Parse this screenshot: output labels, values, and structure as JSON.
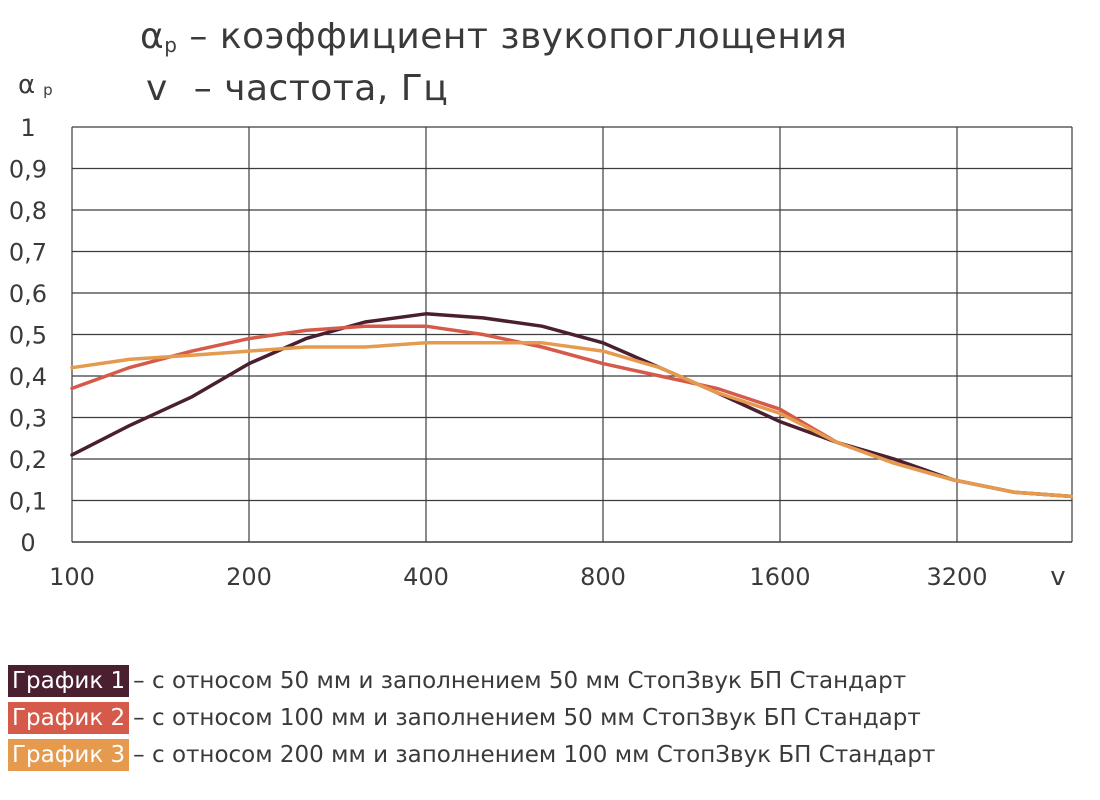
{
  "notes": {
    "alpha_symbol": "α",
    "alpha_sub": "p",
    "alpha_desc": "– коэффициент звукопоглощения",
    "nu_symbol": "v",
    "nu_desc": "– частота, Гц"
  },
  "chart_data": {
    "type": "line",
    "ylabel": "α",
    "ylabel_sub": "p",
    "xlabel": "v",
    "x_scale": "log2",
    "x": [
      100,
      125,
      160,
      200,
      250,
      315,
      400,
      500,
      630,
      800,
      1000,
      1250,
      1600,
      2000,
      2500,
      3150,
      4000,
      5000
    ],
    "x_ticks": [
      100,
      200,
      400,
      800,
      1600,
      3200
    ],
    "x_tick_labels": [
      "100",
      "200",
      "400",
      "800",
      "1600",
      "3200"
    ],
    "ylim": [
      0,
      1
    ],
    "y_ticks": [
      0,
      0.1,
      0.2,
      0.3,
      0.4,
      0.5,
      0.6,
      0.7,
      0.8,
      0.9,
      1
    ],
    "y_tick_labels": [
      "0",
      "0,1",
      "0,2",
      "0,3",
      "0,4",
      "0,5",
      "0,6",
      "0,7",
      "0,8",
      "0,9",
      "1"
    ],
    "grid": true,
    "series": [
      {
        "name": "График 1",
        "color": "#4a2030",
        "values": [
          0.21,
          0.28,
          0.35,
          0.43,
          0.49,
          0.53,
          0.55,
          0.54,
          0.52,
          0.48,
          0.42,
          0.36,
          0.29,
          0.24,
          0.2,
          0.15,
          0.12,
          0.11
        ]
      },
      {
        "name": "График 2",
        "color": "#d55a4a",
        "values": [
          0.37,
          0.42,
          0.46,
          0.49,
          0.51,
          0.52,
          0.52,
          0.5,
          0.47,
          0.43,
          0.4,
          0.37,
          0.32,
          0.24,
          0.19,
          0.15,
          0.12,
          0.11
        ]
      },
      {
        "name": "График 3",
        "color": "#e59a4e",
        "values": [
          0.42,
          0.44,
          0.45,
          0.46,
          0.47,
          0.47,
          0.48,
          0.48,
          0.48,
          0.46,
          0.42,
          0.36,
          0.31,
          0.24,
          0.19,
          0.15,
          0.12,
          0.11
        ]
      }
    ]
  },
  "legend": [
    {
      "label": "График 1",
      "desc": "– с относом 50 мм и заполнением 50 мм СтопЗвук БП Стандарт",
      "color": "#4a2030"
    },
    {
      "label": "График 2",
      "desc": "– с относом 100 мм и заполнением 50 мм СтопЗвук БП Стандарт",
      "color": "#d55a4a"
    },
    {
      "label": "График 3",
      "desc": "– с относом 200 мм и заполнением 100 мм СтопЗвук БП Стандарт",
      "color": "#e59a4e"
    }
  ]
}
